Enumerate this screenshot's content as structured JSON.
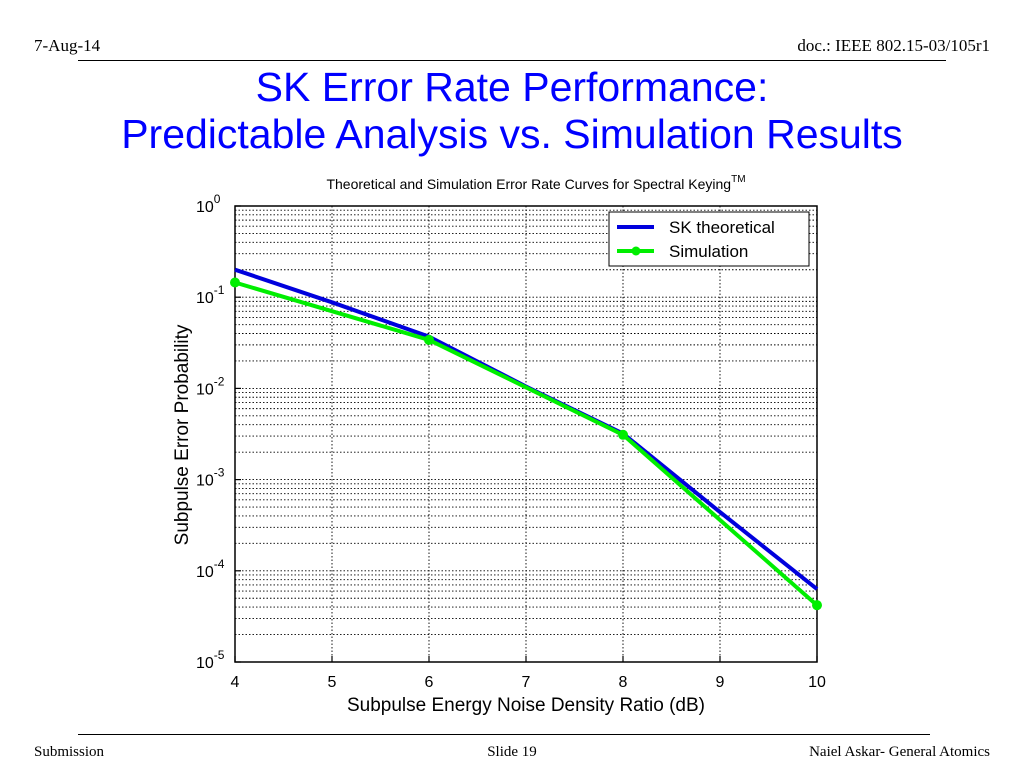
{
  "slide": {
    "date": "7-Aug-14",
    "doc_id": "doc.: IEEE 802.15-03/105r1",
    "title_line1": "SK Error Rate Performance:",
    "title_line2": "Predictable Analysis vs. Simulation Results",
    "footer_left": "Submission",
    "footer_center": "Slide 19",
    "footer_right": "Naiel Askar- General Atomics",
    "title_color": "#0000ff"
  },
  "chart_data": {
    "type": "line",
    "title": "Theoretical and Simulation Error Rate Curves for Spectral Keying",
    "title_superscript": "TM",
    "xlabel": "Subpulse Energy Noise Density Ratio (dB)",
    "ylabel": "Subpulse Error Probability",
    "xlim": [
      4,
      10
    ],
    "ylim": [
      1e-05,
      1
    ],
    "yscale": "log",
    "x_ticks": [
      "4",
      "5",
      "6",
      "7",
      "8",
      "9",
      "10"
    ],
    "y_ticks": [
      {
        "base": "10",
        "exp": "0"
      },
      {
        "base": "10",
        "exp": "-1"
      },
      {
        "base": "10",
        "exp": "-2"
      },
      {
        "base": "10",
        "exp": "-3"
      },
      {
        "base": "10",
        "exp": "-4"
      },
      {
        "base": "10",
        "exp": "-5"
      }
    ],
    "grid": true,
    "legend_position": "top-right",
    "series": [
      {
        "name": "SK theoretical",
        "color": "#0000dd",
        "markers": false,
        "x": [
          4,
          5,
          6,
          7,
          8,
          9,
          10
        ],
        "y": [
          0.2,
          0.088,
          0.037,
          0.0105,
          0.0032,
          0.00044,
          6.3e-05
        ]
      },
      {
        "name": "Simulation",
        "color": "#00ee00",
        "markers": true,
        "x": [
          4,
          6,
          8,
          10
        ],
        "y": [
          0.145,
          0.034,
          0.0031,
          4.2e-05
        ]
      }
    ]
  }
}
